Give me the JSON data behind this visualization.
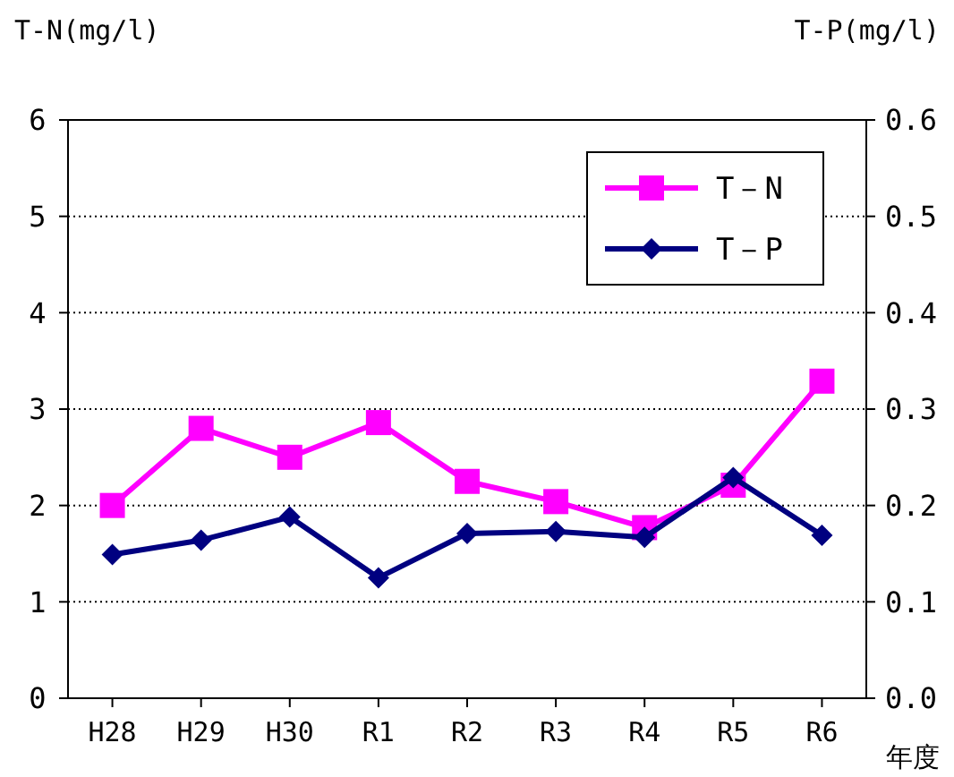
{
  "chart_data": {
    "type": "line",
    "ylabel": "T-N(mg/l)",
    "y2label": "T-P(mg/l)",
    "xlabel": "年度",
    "categories": [
      "H28",
      "H29",
      "H30",
      "R1",
      "R2",
      "R3",
      "R4",
      "R5",
      "R6"
    ],
    "series": [
      {
        "name": "T－N",
        "color": "#ff00ff",
        "marker": "square",
        "values": [
          2.0,
          2.8,
          2.5,
          2.86,
          2.25,
          2.04,
          1.77,
          2.21,
          3.29
        ]
      },
      {
        "name": "T－P",
        "color": "#000080",
        "marker": "diamond",
        "axis": "y2",
        "values": [
          0.149,
          0.164,
          0.188,
          0.125,
          0.171,
          0.173,
          0.167,
          0.229,
          0.169
        ]
      }
    ],
    "ylim": [
      0,
      6
    ],
    "yticks": [
      0,
      1,
      2,
      3,
      4,
      5,
      6
    ],
    "y2lim": [
      0,
      0.6
    ],
    "y2ticks": [
      {
        "value": 0,
        "label": "0.0"
      },
      {
        "value": 0.1,
        "label": "0.1"
      },
      {
        "value": 0.2,
        "label": "0.2"
      },
      {
        "value": 0.3,
        "label": "0.3"
      },
      {
        "value": 0.4,
        "label": "0.4"
      },
      {
        "value": 0.5,
        "label": "0.5"
      },
      {
        "value": 0.6,
        "label": "0.6"
      }
    ],
    "grid": "y",
    "legend": "top right",
    "line_style": "solid"
  }
}
